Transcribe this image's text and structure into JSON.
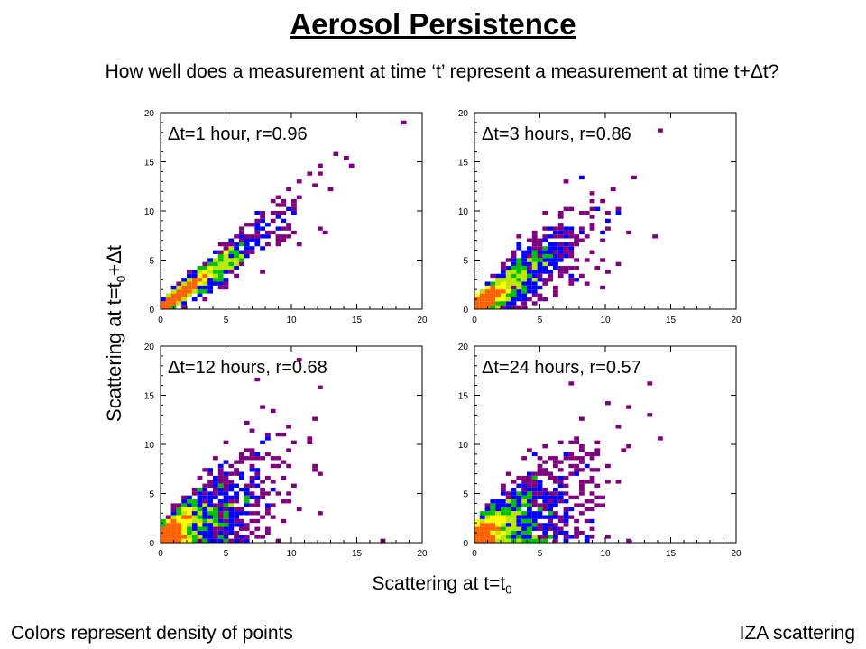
{
  "title": "Aerosol Persistence",
  "subtitle": "How well does a measurement at time ‘t’ represent a measurement at time t+Δt?",
  "ylabel": {
    "prefix": "Scattering at t=t",
    "sub": "0",
    "suffix": "+Δt"
  },
  "xlabel": {
    "prefix": "Scattering at t=t",
    "sub": "0"
  },
  "footnote_left": "Colors represent density of points",
  "footnote_right": "IZA scattering",
  "colors": {
    "low": "#800080",
    "mid_low": "#0000ff",
    "mid": "#00c000",
    "mid_high": "#b8e800",
    "high": "#ffff00",
    "peak": "#ff6000"
  },
  "chart_data": [
    {
      "type": "heatmap",
      "label": "Δt=1 hour, r=0.96",
      "dt_hours": 1,
      "r": 0.96,
      "xlim": [
        0,
        20
      ],
      "ylim": [
        0,
        20
      ],
      "xticks": [
        "0",
        "5",
        "10",
        "15",
        "20"
      ],
      "yticks": [
        "0",
        "5",
        "10",
        "15",
        "20"
      ]
    },
    {
      "type": "heatmap",
      "label": "Δt=3 hours, r=0.86",
      "dt_hours": 3,
      "r": 0.86,
      "xlim": [
        0,
        20
      ],
      "ylim": [
        0,
        20
      ],
      "xticks": [
        "0",
        "5",
        "10",
        "15",
        "20"
      ],
      "yticks": [
        "0",
        "5",
        "10",
        "15",
        "20"
      ]
    },
    {
      "type": "heatmap",
      "label": "Δt=12 hours, r=0.68",
      "dt_hours": 12,
      "r": 0.68,
      "xlim": [
        0,
        20
      ],
      "ylim": [
        0,
        20
      ],
      "xticks": [
        "0",
        "5",
        "10",
        "15",
        "20"
      ],
      "yticks": [
        "0",
        "5",
        "10",
        "15",
        "20"
      ]
    },
    {
      "type": "heatmap",
      "label": "Δt=24 hours, r=0.57",
      "dt_hours": 24,
      "r": 0.57,
      "xlim": [
        0,
        20
      ],
      "ylim": [
        0,
        20
      ],
      "xticks": [
        "0",
        "5",
        "10",
        "15",
        "20"
      ],
      "yticks": [
        "0",
        "5",
        "10",
        "15",
        "20"
      ]
    }
  ]
}
